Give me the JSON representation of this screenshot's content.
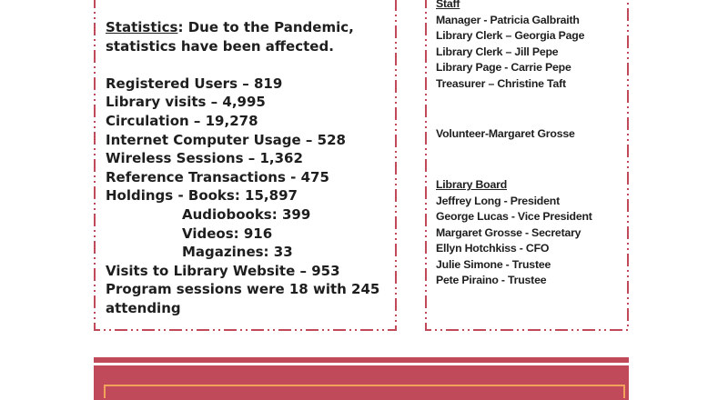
{
  "statistics": {
    "heading": "Statistics",
    "intro_rest": ": Due to the Pandemic,",
    "intro_line2": "statistics have been affected.",
    "items": [
      "Registered Users – 819",
      "Library visits – 4,995",
      "Circulation – 19,278",
      "Internet Computer Usage – 528",
      "Wireless Sessions – 1,362",
      "Reference Transactions - 475",
      "Holdings - Books:  15,897"
    ],
    "holdings_sub": [
      "Audiobooks: 399",
      "Videos: 916",
      "Magazines: 33"
    ],
    "items_after": [
      "Visits to Library Website – 953",
      "Program sessions were 18 with 245",
      "attending"
    ]
  },
  "staff": {
    "heading": "Staff",
    "members": [
      "Manager - Patricia Galbraith",
      "Library Clerk – Georgia Page",
      "Library Clerk – Jill Pepe",
      "Library Page - Carrie Pepe",
      "Treasurer – Christine Taft"
    ],
    "volunteer": "Volunteer-Margaret Grosse"
  },
  "board": {
    "heading": "Library Board",
    "members": [
      "Jeffrey Long - President",
      "George Lucas - Vice President",
      "Margaret Grosse - Secretary",
      "Ellyn Hotchkiss - CFO",
      "Julie Simone - Trustee",
      "Pete Piraino - Trustee"
    ]
  },
  "colors": {
    "border": "#c14a5a",
    "band": "#c14a5a",
    "inner_border": "#f2a25a"
  }
}
